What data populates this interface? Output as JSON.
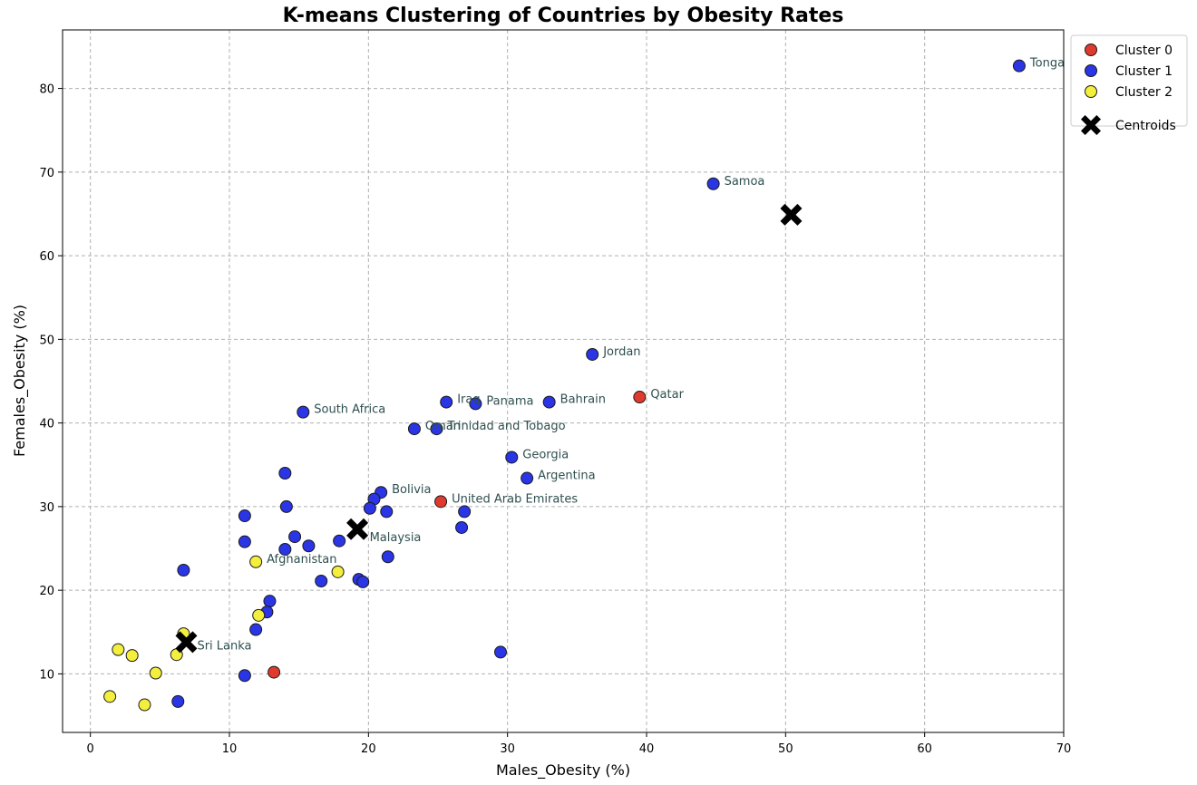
{
  "chart_data": {
    "type": "scatter",
    "title": "K-means Clustering of Countries by Obesity Rates",
    "xlabel": "Males_Obesity (%)",
    "ylabel": "Females_Obesity (%)",
    "xlim": [
      -2,
      70
    ],
    "ylim": [
      3,
      87
    ],
    "xticks": [
      0,
      10,
      20,
      30,
      40,
      50,
      60,
      70
    ],
    "yticks": [
      10,
      20,
      30,
      40,
      50,
      60,
      70,
      80
    ],
    "grid": true,
    "legend_position": "outside-top-right",
    "colors": {
      "cluster_0": "#e03a2f",
      "cluster_1": "#2a35e6",
      "cluster_2": "#f4ef3c",
      "centroid": "#000000"
    },
    "series": [
      {
        "name": "Cluster 0",
        "points": [
          {
            "x": 39.5,
            "y": 43.1
          },
          {
            "x": 25.2,
            "y": 30.6
          },
          {
            "x": 13.2,
            "y": 10.2
          }
        ]
      },
      {
        "name": "Cluster 1",
        "points": [
          {
            "x": 66.8,
            "y": 82.7
          },
          {
            "x": 44.8,
            "y": 68.6
          },
          {
            "x": 36.1,
            "y": 48.2
          },
          {
            "x": 33.0,
            "y": 42.5
          },
          {
            "x": 27.7,
            "y": 42.3
          },
          {
            "x": 25.6,
            "y": 42.5
          },
          {
            "x": 15.3,
            "y": 41.3
          },
          {
            "x": 23.3,
            "y": 39.3
          },
          {
            "x": 24.9,
            "y": 39.3
          },
          {
            "x": 30.3,
            "y": 35.9
          },
          {
            "x": 31.4,
            "y": 33.4
          },
          {
            "x": 20.9,
            "y": 31.7
          },
          {
            "x": 20.4,
            "y": 30.9
          },
          {
            "x": 20.1,
            "y": 29.8
          },
          {
            "x": 21.3,
            "y": 29.4
          },
          {
            "x": 26.9,
            "y": 29.4
          },
          {
            "x": 26.7,
            "y": 27.5
          },
          {
            "x": 14.0,
            "y": 34.0
          },
          {
            "x": 14.1,
            "y": 30.0
          },
          {
            "x": 11.1,
            "y": 28.9
          },
          {
            "x": 11.1,
            "y": 25.8
          },
          {
            "x": 14.7,
            "y": 26.4
          },
          {
            "x": 15.7,
            "y": 25.3
          },
          {
            "x": 14.0,
            "y": 24.9
          },
          {
            "x": 17.9,
            "y": 25.9
          },
          {
            "x": 21.4,
            "y": 24.0
          },
          {
            "x": 16.6,
            "y": 21.1
          },
          {
            "x": 19.3,
            "y": 21.3
          },
          {
            "x": 19.6,
            "y": 21.0
          },
          {
            "x": 6.7,
            "y": 22.4
          },
          {
            "x": 12.9,
            "y": 18.7
          },
          {
            "x": 12.7,
            "y": 17.4
          },
          {
            "x": 11.9,
            "y": 15.3
          },
          {
            "x": 29.5,
            "y": 12.6
          },
          {
            "x": 11.1,
            "y": 9.8
          },
          {
            "x": 6.3,
            "y": 6.7
          }
        ]
      },
      {
        "name": "Cluster 2",
        "points": [
          {
            "x": 11.9,
            "y": 23.4
          },
          {
            "x": 17.8,
            "y": 22.2
          },
          {
            "x": 12.1,
            "y": 17.0
          },
          {
            "x": 6.7,
            "y": 14.8
          },
          {
            "x": 6.2,
            "y": 12.3
          },
          {
            "x": 2.0,
            "y": 12.9
          },
          {
            "x": 3.0,
            "y": 12.2
          },
          {
            "x": 4.7,
            "y": 10.1
          },
          {
            "x": 1.4,
            "y": 7.3
          },
          {
            "x": 3.9,
            "y": 6.3
          }
        ]
      },
      {
        "name": "Centroids",
        "points": [
          {
            "x": 50.4,
            "y": 64.9
          },
          {
            "x": 19.2,
            "y": 27.3
          },
          {
            "x": 6.9,
            "y": 13.8
          }
        ]
      }
    ],
    "annotations": [
      {
        "text": "Tonga",
        "x": 66.8,
        "y": 82.7
      },
      {
        "text": "Samoa",
        "x": 44.8,
        "y": 68.6
      },
      {
        "text": "Jordan",
        "x": 36.1,
        "y": 48.2
      },
      {
        "text": "Qatar",
        "x": 39.5,
        "y": 43.1
      },
      {
        "text": "Bahrain",
        "x": 33.0,
        "y": 42.5
      },
      {
        "text": "Panama",
        "x": 27.7,
        "y": 42.3
      },
      {
        "text": "Iraq",
        "x": 25.6,
        "y": 42.5
      },
      {
        "text": "South Africa",
        "x": 15.3,
        "y": 41.3
      },
      {
        "text": "Oman",
        "x": 23.3,
        "y": 39.3
      },
      {
        "text": "Trinidad and Tobago",
        "x": 24.9,
        "y": 39.3
      },
      {
        "text": "Georgia",
        "x": 30.3,
        "y": 35.9
      },
      {
        "text": "Argentina",
        "x": 31.4,
        "y": 33.4
      },
      {
        "text": "Bolivia",
        "x": 20.9,
        "y": 31.7
      },
      {
        "text": "United Arab Emirates",
        "x": 25.2,
        "y": 30.6
      },
      {
        "text": "Malaysia",
        "x": 19.3,
        "y": 26.0
      },
      {
        "text": "Afghanistan",
        "x": 11.9,
        "y": 23.4
      },
      {
        "text": "Sri Lanka",
        "x": 6.9,
        "y": 13.0
      }
    ]
  }
}
